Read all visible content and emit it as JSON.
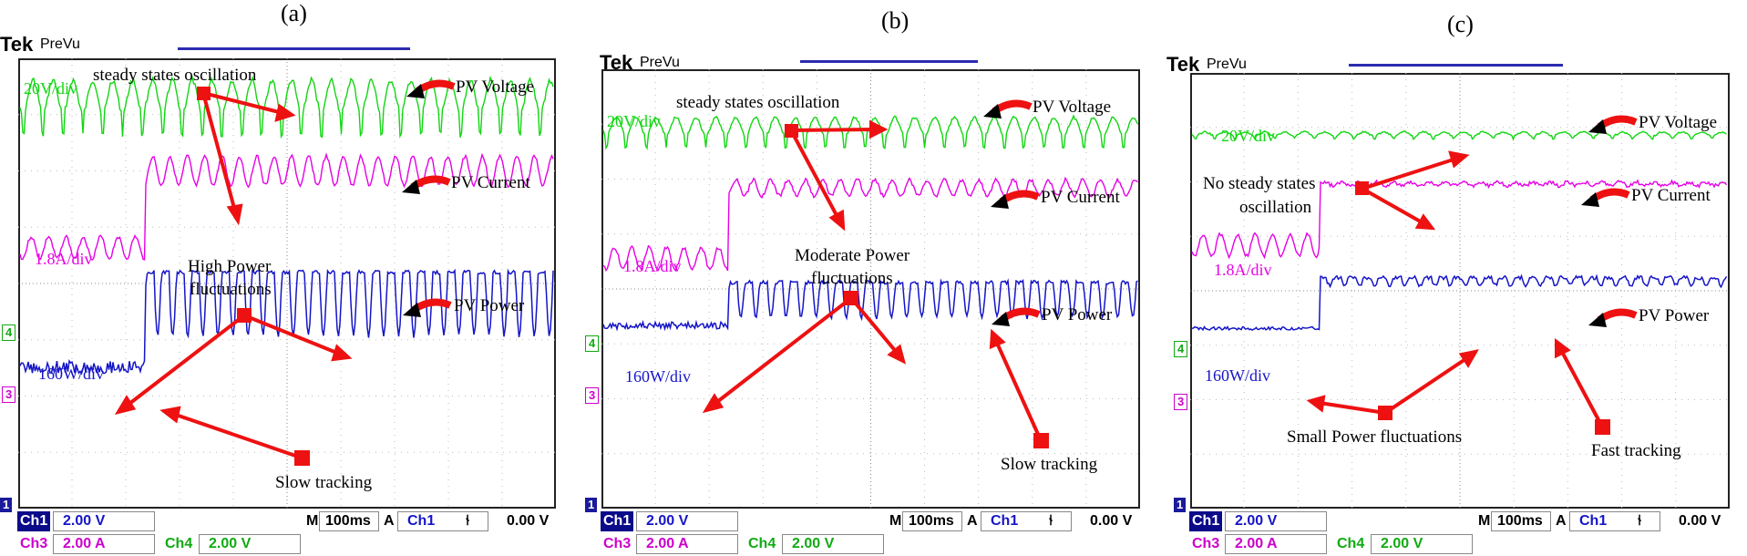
{
  "panels": [
    {
      "label": "(a)",
      "brand": "Tek",
      "mode": "PreVu",
      "voltage_scale": "20V/div",
      "current_scale": "1.8A/div",
      "power_scale": "160W/div",
      "ann_oscillation": "steady states oscillation",
      "ann_pv_voltage": "PV Voltage",
      "ann_pv_current": "PV Current",
      "ann_pv_power": "PV Power",
      "ann_fluct_1": "High Power",
      "ann_fluct_2": "fluctuations",
      "ann_tracking": "Slow tracking",
      "status": {
        "ch1": "Ch1",
        "ch1_val": "2.00 V",
        "ch3": "Ch3",
        "ch3_val": "2.00 A",
        "ch4": "Ch4",
        "ch4_val": "2.00 V",
        "m": "M",
        "timebase": "100ms",
        "a": "A",
        "trig_ch": "Ch1",
        "trig_sym": "⫮",
        "trig_val": "0.00 V"
      },
      "markers": {
        "ch4": "4",
        "ch3": "3",
        "ch1": "1"
      }
    },
    {
      "label": "(b)",
      "brand": "Tek",
      "mode": "PreVu",
      "voltage_scale": "20V/div",
      "current_scale": "1.8A/div",
      "power_scale": "160W/div",
      "ann_oscillation": "steady states oscillation",
      "ann_pv_voltage": "PV Voltage",
      "ann_pv_current": "PV Current",
      "ann_pv_power": "PV Power",
      "ann_fluct_1": "Moderate Power",
      "ann_fluct_2": "fluctuations",
      "ann_tracking": "Slow tracking",
      "status": {
        "ch1": "Ch1",
        "ch1_val": "2.00 V",
        "ch3": "Ch3",
        "ch3_val": "2.00 A",
        "ch4": "Ch4",
        "ch4_val": "2.00 V",
        "m": "M",
        "timebase": "100ms",
        "a": "A",
        "trig_ch": "Ch1",
        "trig_sym": "⫮",
        "trig_val": "0.00 V"
      },
      "markers": {
        "ch4": "4",
        "ch3": "3",
        "ch1": "1"
      }
    },
    {
      "label": "(c)",
      "brand": "Tek",
      "mode": "PreVu",
      "voltage_scale": "20V/div",
      "current_scale": "1.8A/div",
      "power_scale": "160W/div",
      "ann_oscillation_1": "No steady states",
      "ann_oscillation_2": "oscillation",
      "ann_pv_voltage": "PV Voltage",
      "ann_pv_current": "PV Current",
      "ann_pv_power": "PV Power",
      "ann_fluct": "Small Power fluctuations",
      "ann_tracking": "Fast tracking",
      "status": {
        "ch1": "Ch1",
        "ch1_val": "2.00 V",
        "ch3": "Ch3",
        "ch3_val": "2.00 A",
        "ch4": "Ch4",
        "ch4_val": "2.00 V",
        "m": "M",
        "timebase": "100ms",
        "a": "A",
        "trig_ch": "Ch1",
        "trig_sym": "⫮",
        "trig_val": "0.00 V"
      },
      "markers": {
        "ch4": "4",
        "ch3": "3",
        "ch1": "1"
      }
    }
  ],
  "colors": {
    "voltage": "#11d611",
    "current": "#e600e6",
    "power": "#1515c8",
    "arrow": "#ee1111"
  },
  "chart_data": [
    {
      "type": "line",
      "series": [
        {
          "name": "PV Voltage"
        },
        {
          "name": "PV Current"
        },
        {
          "name": "PV Power"
        }
      ],
      "x": {
        "unit": "ms",
        "timebase": "100ms/div"
      },
      "scales": {
        "voltage": "20V/div",
        "current": "1.8A/div",
        "power": "160W/div"
      },
      "behaviour": {
        "oscillation_amplitude": "high",
        "step_rise_division": 3.5
      }
    },
    {
      "type": "line",
      "series": [
        {
          "name": "PV Voltage"
        },
        {
          "name": "PV Current"
        },
        {
          "name": "PV Power"
        }
      ],
      "x": {
        "unit": "ms",
        "timebase": "100ms/div"
      },
      "scales": {
        "voltage": "20V/div",
        "current": "1.8A/div",
        "power": "160W/div"
      },
      "behaviour": {
        "oscillation_amplitude": "moderate",
        "step_rise_division": 3
      }
    },
    {
      "type": "line",
      "series": [
        {
          "name": "PV Voltage"
        },
        {
          "name": "PV Current"
        },
        {
          "name": "PV Power"
        }
      ],
      "x": {
        "unit": "ms",
        "timebase": "100ms/div"
      },
      "scales": {
        "voltage": "20V/div",
        "current": "1.8A/div",
        "power": "160W/div"
      },
      "behaviour": {
        "oscillation_amplitude": "small",
        "step_rise_division": 3.5
      }
    }
  ]
}
